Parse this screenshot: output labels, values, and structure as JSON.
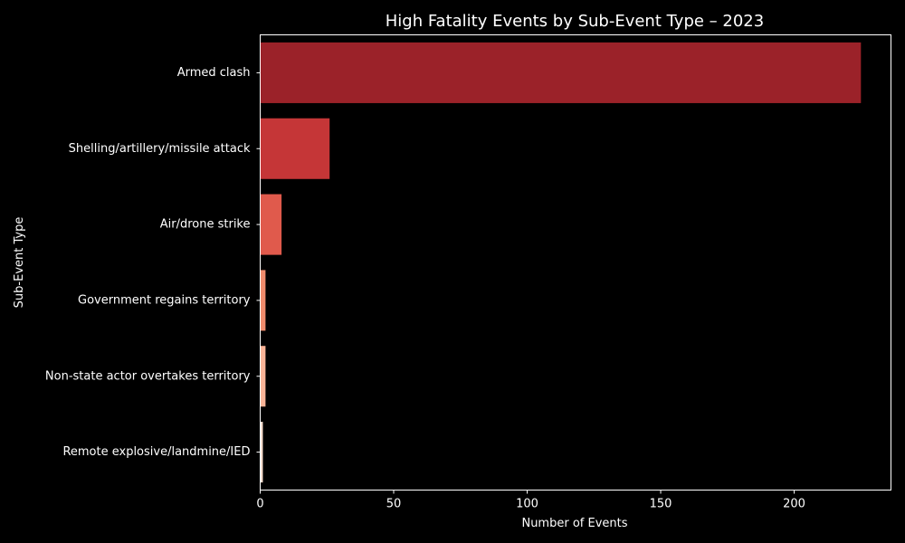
{
  "chart_data": {
    "type": "bar",
    "orientation": "horizontal",
    "title": "High Fatality Events by Sub-Event Type – 2023",
    "xlabel": "Number of Events",
    "ylabel": "Sub-Event Type",
    "categories": [
      "Armed clash",
      "Shelling/artillery/missile attack",
      "Air/drone strike",
      "Government regains territory",
      "Non-state actor overtakes territory",
      "Remote explosive/landmine/IED"
    ],
    "values": [
      225,
      26,
      8,
      2,
      2,
      1
    ],
    "colors": [
      "#9b2229",
      "#c53637",
      "#e05a4c",
      "#f08c6d",
      "#f9b498",
      "#fde0d2"
    ],
    "xlim": [
      0,
      236.25
    ],
    "xticks": [
      0,
      50,
      100,
      150,
      200
    ],
    "grid": false,
    "background": "#000000",
    "text_color": "#ffffff"
  }
}
